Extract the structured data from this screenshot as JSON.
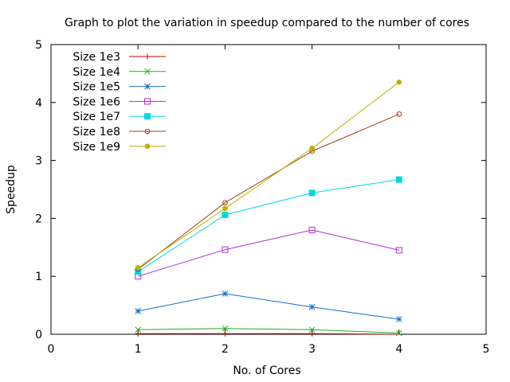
{
  "chart_data": {
    "type": "line",
    "title": "Graph to plot the variation in speedup compared to the number of cores",
    "xlabel": "No. of Cores",
    "ylabel": "Speedup",
    "xlim": [
      0,
      5
    ],
    "ylim": [
      0,
      5
    ],
    "xticks": [
      "0",
      "1",
      "2",
      "3",
      "4",
      "5"
    ],
    "yticks": [
      "0",
      "1",
      "2",
      "3",
      "4",
      "5"
    ],
    "grid": false,
    "legend_position": "top-left",
    "series": [
      {
        "name": "Size 1e3",
        "color": "#cc0000",
        "marker": "plus",
        "x": [
          1,
          2,
          3,
          4
        ],
        "y": [
          0.01,
          0.01,
          0.01,
          0.0
        ],
        "no_marker_at": [
          3
        ]
      },
      {
        "name": "Size 1e4",
        "color": "#22aa22",
        "marker": "x",
        "x": [
          1,
          2,
          3,
          4
        ],
        "y": [
          0.08,
          0.1,
          0.08,
          0.02
        ]
      },
      {
        "name": "Size 1e5",
        "color": "#1a6fd0",
        "marker": "star",
        "x": [
          1,
          2,
          3,
          4
        ],
        "y": [
          0.4,
          0.7,
          0.47,
          0.26
        ]
      },
      {
        "name": "Size 1e6",
        "color": "#b030d0",
        "marker": "open-square",
        "x": [
          1,
          2,
          3,
          4
        ],
        "y": [
          1.0,
          1.46,
          1.8,
          1.45
        ]
      },
      {
        "name": "Size 1e7",
        "color": "#00d8e0",
        "marker": "filled-square",
        "x": [
          1,
          2,
          3,
          4
        ],
        "y": [
          1.08,
          2.06,
          2.44,
          2.67
        ]
      },
      {
        "name": "Size 1e8",
        "color": "#a04010",
        "marker": "open-circle",
        "x": [
          1,
          2,
          3,
          4
        ],
        "y": [
          1.12,
          2.27,
          3.16,
          3.8
        ]
      },
      {
        "name": "Size 1e9",
        "color": "#c0b000",
        "marker": "filled-circle",
        "x": [
          1,
          2,
          3,
          4
        ],
        "y": [
          1.15,
          2.17,
          3.21,
          4.35
        ]
      }
    ]
  }
}
